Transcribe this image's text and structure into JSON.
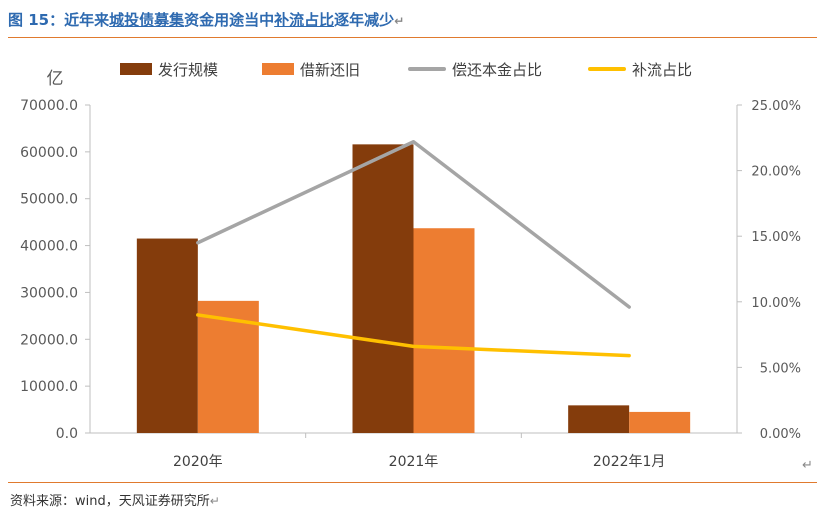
{
  "header": {
    "figure_label": "图 15：",
    "title_parts": [
      {
        "text": "近年来",
        "underline": false
      },
      {
        "text": "城投债募集",
        "underline": true
      },
      {
        "text": "资金用途当中",
        "underline": false
      },
      {
        "text": "补流占比",
        "underline": true
      },
      {
        "text": "逐年减少",
        "underline": false
      }
    ],
    "return_mark": "↵"
  },
  "footer": {
    "source": "资料来源：wind，天风证券研究所",
    "return_mark": "↵"
  },
  "chart_data": {
    "type": "bar",
    "categories": [
      "2020年",
      "2021年",
      "2022年1月"
    ],
    "y_unit_label": "亿",
    "ylim": [
      0,
      70000
    ],
    "yticks": [
      "0.0",
      "10000.0",
      "20000.0",
      "30000.0",
      "40000.0",
      "50000.0",
      "60000.0",
      "70000.0"
    ],
    "y2lim": [
      0,
      0.25
    ],
    "y2ticks": [
      "0.00%",
      "5.00%",
      "10.00%",
      "15.00%",
      "20.00%",
      "25.00%"
    ],
    "legend_position": "top",
    "grid": false,
    "series": [
      {
        "name": "发行规模",
        "type": "bar",
        "axis": "left",
        "color": "#843c0c",
        "values": [
          41500,
          61600,
          5900
        ]
      },
      {
        "name": "借新还旧",
        "type": "bar",
        "axis": "left",
        "color": "#ed7d31",
        "values": [
          28200,
          43700,
          4500
        ]
      },
      {
        "name": "偿还本金占比",
        "type": "line",
        "axis": "right",
        "color": "#a5a5a5",
        "values": [
          0.145,
          0.222,
          0.096
        ]
      },
      {
        "name": "补流占比",
        "type": "line",
        "axis": "right",
        "color": "#ffc000",
        "values": [
          0.09,
          0.066,
          0.059
        ]
      }
    ]
  }
}
